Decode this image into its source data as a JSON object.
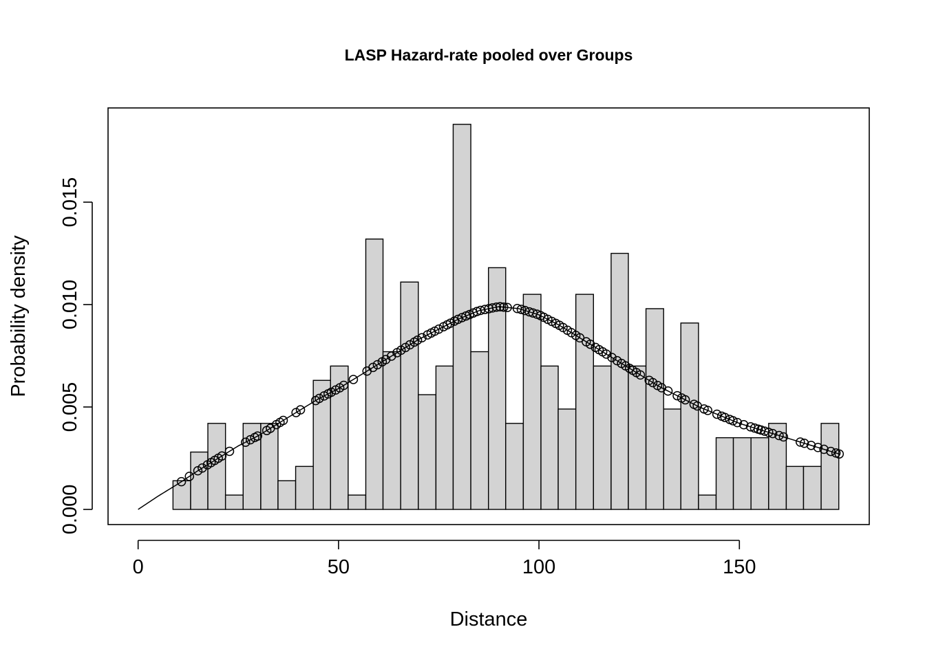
{
  "chart_data": {
    "type": "bar",
    "title": "LASP Hazard-rate  pooled over Groups",
    "xlabel": "Distance",
    "ylabel": "Probability density",
    "xlim": [
      -7.5,
      182.4
    ],
    "ylim": [
      -0.00074,
      0.0196
    ],
    "xticks": [
      0,
      50,
      100,
      150
    ],
    "xtick_labels": [
      "0",
      "50",
      "100",
      "150"
    ],
    "yticks": [
      0,
      0.005,
      0.01,
      0.015
    ],
    "ytick_labels": [
      "0.000",
      "0.005",
      "0.010",
      "0.015"
    ],
    "histogram": {
      "bin_edges": [
        8.7,
        13.1,
        17.4,
        21.8,
        26.2,
        30.6,
        34.9,
        39.3,
        43.7,
        48.0,
        52.4,
        56.8,
        61.1,
        65.5,
        69.9,
        74.3,
        78.6,
        83.0,
        87.4,
        91.7,
        96.1,
        100.5,
        104.8,
        109.2,
        113.6,
        118.0,
        122.3,
        126.7,
        131.1,
        135.4,
        139.8,
        144.2,
        148.5,
        152.9,
        157.3,
        161.7,
        166.0,
        170.4,
        174.8
      ],
      "densities": [
        0.0014,
        0.0028,
        0.0042,
        0.0007,
        0.0042,
        0.0042,
        0.0014,
        0.0021,
        0.0063,
        0.007,
        0.0007,
        0.0132,
        0.0077,
        0.0111,
        0.0056,
        0.007,
        0.0188,
        0.0077,
        0.0118,
        0.0042,
        0.0105,
        0.007,
        0.0049,
        0.0105,
        0.007,
        0.0125,
        0.007,
        0.0098,
        0.0049,
        0.0091,
        0.0007,
        0.0035,
        0.0035,
        0.0035,
        0.0042,
        0.0021,
        0.0021,
        0.0042
      ]
    },
    "fitted_curve": {
      "x": [
        0,
        5,
        10,
        15,
        20,
        25,
        30,
        35,
        40,
        45,
        50,
        55,
        60,
        65,
        70,
        75,
        80,
        85,
        90,
        95,
        100,
        105,
        110,
        115,
        120,
        125,
        130,
        135,
        140,
        145,
        150,
        155,
        160,
        165,
        170,
        175
      ],
      "y": [
        0.0,
        0.00065,
        0.00125,
        0.0019,
        0.0025,
        0.0031,
        0.0036,
        0.0042,
        0.0048,
        0.0054,
        0.0059,
        0.0065,
        0.0071,
        0.0077,
        0.0083,
        0.0088,
        0.0093,
        0.0097,
        0.0099,
        0.0098,
        0.0095,
        0.009,
        0.0084,
        0.0078,
        0.0072,
        0.0066,
        0.006,
        0.0055,
        0.005,
        0.0046,
        0.0042,
        0.0039,
        0.0036,
        0.0033,
        0.003,
        0.0027
      ]
    },
    "points_x": [
      10.8,
      12.8,
      14.9,
      16.0,
      17.3,
      18.2,
      19.1,
      20.0,
      20.9,
      22.8,
      26.8,
      28.0,
      29.1,
      29.8,
      32.1,
      33.0,
      34.5,
      35.4,
      36.2,
      39.4,
      40.5,
      44.3,
      45.2,
      46.4,
      47.4,
      48.2,
      49.3,
      50.3,
      51.3,
      53.7,
      57.1,
      58.6,
      59.7,
      60.9,
      61.8,
      63.2,
      64.6,
      65.6,
      66.7,
      67.8,
      68.9,
      69.7,
      70.8,
      72.2,
      73.1,
      74.0,
      75.0,
      76.2,
      77.1,
      77.9,
      78.9,
      79.8,
      80.8,
      81.8,
      82.7,
      83.6,
      84.5,
      85.4,
      86.5,
      87.5,
      88.4,
      89.4,
      90.3,
      91.2,
      92.1,
      94.6,
      95.6,
      96.5,
      97.6,
      98.5,
      99.5,
      100.4,
      101.2,
      102.2,
      103.2,
      104.2,
      105.1,
      106.0,
      107.1,
      108.1,
      109.2,
      110.2,
      111.8,
      112.8,
      114.1,
      115.0,
      115.9,
      116.8,
      118.2,
      119.5,
      120.6,
      121.6,
      122.6,
      123.4,
      124.3,
      125.3,
      127.5,
      128.4,
      129.6,
      130.6,
      132.2,
      134.5,
      135.6,
      136.5,
      138.7,
      139.5,
      141.2,
      142.1,
      144.4,
      145.6,
      146.4,
      147.6,
      148.4,
      149.5,
      151.1,
      152.8,
      153.8,
      154.7,
      155.4,
      156.3,
      157.3,
      158.3,
      159.9,
      161.0,
      165.2,
      166.2,
      167.9,
      169.6,
      171.1,
      172.8,
      174.1,
      174.9
    ]
  }
}
